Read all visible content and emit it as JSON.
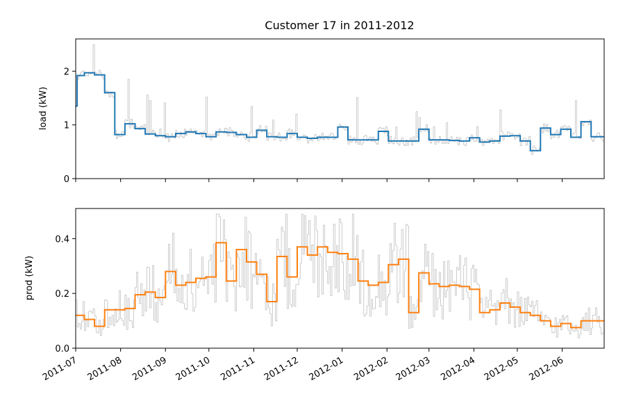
{
  "chart_data": {
    "type": "line",
    "title": "Customer 17 in 2011-2012",
    "x_tick_labels": [
      "2011-07",
      "2011-08",
      "2011-09",
      "2011-10",
      "2011-11",
      "2011-12",
      "2012-01",
      "2012-02",
      "2012-03",
      "2012-04",
      "2012-05",
      "2012-06"
    ],
    "xlim": [
      "2011-07-01",
      "2012-06-30"
    ],
    "grid": false,
    "colors": {
      "load": "#1f77b4",
      "prod": "#ff7f0e",
      "daily": "#999999"
    },
    "panels": [
      {
        "name": "load",
        "ylabel": "load (kW)",
        "ylim": [
          0,
          2.6
        ],
        "yticks": [
          0,
          1,
          2
        ],
        "ytick_labels": [
          "0",
          "1",
          "2"
        ],
        "weekly_mean": {
          "x": [
            "2011-07-01",
            "2011-07-02",
            "2011-07-07",
            "2011-07-14",
            "2011-07-21",
            "2011-07-28",
            "2011-08-04",
            "2011-08-11",
            "2011-08-18",
            "2011-08-25",
            "2011-09-01",
            "2011-09-08",
            "2011-09-15",
            "2011-09-22",
            "2011-09-29",
            "2011-10-06",
            "2011-10-13",
            "2011-10-20",
            "2011-10-27",
            "2011-11-03",
            "2011-11-10",
            "2011-11-17",
            "2011-11-24",
            "2011-12-01",
            "2011-12-08",
            "2011-12-15",
            "2011-12-22",
            "2011-12-29",
            "2012-01-05",
            "2012-01-12",
            "2012-01-19",
            "2012-01-26",
            "2012-02-02",
            "2012-02-09",
            "2012-02-16",
            "2012-02-23",
            "2012-03-01",
            "2012-03-08",
            "2012-03-15",
            "2012-03-22",
            "2012-03-29",
            "2012-04-05",
            "2012-04-12",
            "2012-04-19",
            "2012-04-26",
            "2012-05-03",
            "2012-05-10",
            "2012-05-17",
            "2012-05-24",
            "2012-05-31",
            "2012-06-07",
            "2012-06-14",
            "2012-06-21"
          ],
          "values": [
            1.35,
            1.92,
            1.97,
            1.93,
            1.6,
            0.82,
            1.02,
            0.93,
            0.83,
            0.8,
            0.78,
            0.84,
            0.87,
            0.84,
            0.78,
            0.87,
            0.86,
            0.82,
            0.77,
            0.9,
            0.78,
            0.77,
            0.84,
            0.77,
            0.75,
            0.77,
            0.77,
            0.96,
            0.72,
            0.72,
            0.72,
            0.88,
            0.7,
            0.7,
            0.7,
            0.92,
            0.72,
            0.72,
            0.71,
            0.7,
            0.76,
            0.68,
            0.7,
            0.79,
            0.8,
            0.7,
            0.52,
            0.94,
            0.82,
            0.92,
            0.77,
            1.06,
            0.78
          ]
        }
      },
      {
        "name": "prod",
        "ylabel": "prod (kW)",
        "ylim": [
          0,
          0.51
        ],
        "yticks": [
          0,
          0.2,
          0.4
        ],
        "ytick_labels": [
          "0.0",
          "0.2",
          "0.4"
        ],
        "weekly_mean": {
          "x": [
            "2011-07-01",
            "2011-07-07",
            "2011-07-14",
            "2011-07-21",
            "2011-07-28",
            "2011-08-04",
            "2011-08-11",
            "2011-08-18",
            "2011-08-25",
            "2011-09-01",
            "2011-09-08",
            "2011-09-15",
            "2011-09-22",
            "2011-09-29",
            "2011-10-06",
            "2011-10-13",
            "2011-10-20",
            "2011-10-27",
            "2011-11-03",
            "2011-11-10",
            "2011-11-17",
            "2011-11-24",
            "2011-12-01",
            "2011-12-08",
            "2011-12-15",
            "2011-12-22",
            "2011-12-29",
            "2012-01-05",
            "2012-01-12",
            "2012-01-19",
            "2012-01-26",
            "2012-02-02",
            "2012-02-09",
            "2012-02-16",
            "2012-02-23",
            "2012-03-01",
            "2012-03-08",
            "2012-03-15",
            "2012-03-22",
            "2012-03-29",
            "2012-04-05",
            "2012-04-12",
            "2012-04-19",
            "2012-04-26",
            "2012-05-03",
            "2012-05-10",
            "2012-05-17",
            "2012-05-24",
            "2012-05-31",
            "2012-06-07",
            "2012-06-14",
            "2012-06-21"
          ],
          "values": [
            0.12,
            0.105,
            0.08,
            0.14,
            0.14,
            0.145,
            0.195,
            0.205,
            0.185,
            0.28,
            0.23,
            0.24,
            0.255,
            0.26,
            0.385,
            0.245,
            0.36,
            0.315,
            0.27,
            0.17,
            0.335,
            0.26,
            0.37,
            0.34,
            0.37,
            0.35,
            0.345,
            0.325,
            0.245,
            0.23,
            0.24,
            0.305,
            0.325,
            0.13,
            0.275,
            0.235,
            0.225,
            0.23,
            0.225,
            0.215,
            0.13,
            0.14,
            0.165,
            0.15,
            0.13,
            0.12,
            0.1,
            0.08,
            0.09,
            0.075,
            0.1,
            0.1
          ]
        }
      }
    ]
  }
}
